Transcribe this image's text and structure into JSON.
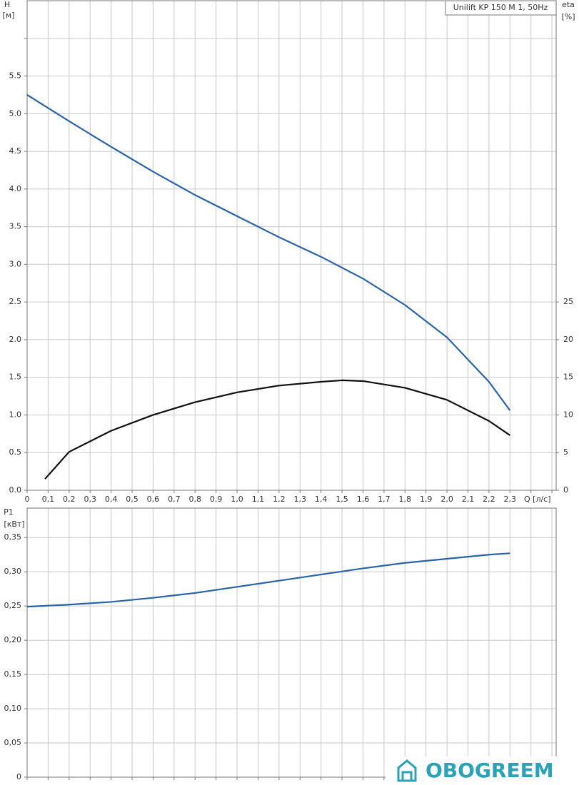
{
  "chart_data": [
    {
      "type": "line",
      "title": "Unilift KP 150 M 1, 50Hz",
      "ylabel": "H",
      "yunit": "[м]",
      "y2label": "eta",
      "y2unit": "[%]",
      "xlabel": "Q [л/с]",
      "xlim": [
        0,
        2.52
      ],
      "ylim": [
        0,
        6.5
      ],
      "y2lim": [
        0,
        65
      ],
      "grid": true,
      "xticks": [
        0,
        {
          "value": 0.1,
          "label": "0,1"
        },
        {
          "value": 0.2,
          "label": "0,2"
        },
        {
          "value": 0.3,
          "label": "0,3"
        },
        {
          "value": 0.4,
          "label": "0,4"
        },
        {
          "value": 0.5,
          "label": "0,5"
        },
        {
          "value": 0.6,
          "label": "0,6"
        },
        {
          "value": 0.7,
          "label": "0,7"
        },
        {
          "value": 0.8,
          "label": "0,8"
        },
        {
          "value": 0.9,
          "label": "0,9"
        },
        {
          "value": 1.0,
          "label": "1,0"
        },
        {
          "value": 1.1,
          "label": "1,1"
        },
        {
          "value": 1.2,
          "label": "1,2"
        },
        {
          "value": 1.3,
          "label": "1,3"
        },
        {
          "value": 1.4,
          "label": "1,4"
        },
        {
          "value": 1.5,
          "label": "1,5"
        },
        {
          "value": 1.6,
          "label": "1,6"
        },
        {
          "value": 1.7,
          "label": "1,7"
        },
        {
          "value": 1.8,
          "label": "1,8"
        },
        {
          "value": 1.9,
          "label": "1,9"
        },
        {
          "value": 2.0,
          "label": "2,0"
        },
        {
          "value": 2.1,
          "label": "2,1"
        },
        {
          "value": 2.2,
          "label": "2,2"
        },
        {
          "value": 2.3,
          "label": "2,3"
        },
        {
          "value": 2.4,
          "label": null
        },
        {
          "value": 2.5,
          "label": null
        }
      ],
      "yticks": [
        {
          "value": 0,
          "label": "0.0"
        },
        0.5,
        {
          "value": 1,
          "label": "1.0"
        },
        1.5,
        {
          "value": 2,
          "label": "2.0"
        },
        2.5,
        {
          "value": 3,
          "label": "3.0"
        },
        3.5,
        {
          "value": 4,
          "label": "4.0"
        },
        4.5,
        {
          "value": 5,
          "label": "5.0"
        },
        5.5,
        {
          "value": 6,
          "label": null
        }
      ],
      "y2ticks": [
        0,
        5,
        10,
        15,
        20,
        25
      ],
      "series": [
        {
          "color": "#2a63a8",
          "x": [
            0,
            0.2,
            0.4,
            0.6,
            0.8,
            1.0,
            1.2,
            1.4,
            1.6,
            1.8,
            2.0,
            2.2,
            2.3
          ],
          "values": [
            5.25,
            4.9,
            4.56,
            4.23,
            3.92,
            3.64,
            3.36,
            3.1,
            2.81,
            2.46,
            2.03,
            1.44,
            1.06
          ]
        },
        {
          "color": "#111111",
          "axis": "y2",
          "x": [
            0.085,
            0.2,
            0.4,
            0.6,
            0.8,
            1.0,
            1.2,
            1.4,
            1.5,
            1.6,
            1.8,
            2.0,
            2.2,
            2.3
          ],
          "values": [
            1.5,
            5.1,
            7.9,
            10.0,
            11.7,
            13.0,
            13.9,
            14.4,
            14.6,
            14.5,
            13.6,
            12.0,
            9.2,
            7.3
          ]
        }
      ]
    },
    {
      "type": "line",
      "ylabel": "P1",
      "yunit": "[кВт]",
      "xlim": [
        0,
        2.52
      ],
      "ylim": [
        0,
        0.393
      ],
      "grid": true,
      "xtick_labels": false,
      "xticks": [
        0,
        0.1,
        0.2,
        0.3,
        0.4,
        0.5,
        0.6,
        0.7,
        0.8,
        0.9,
        1.0,
        1.1,
        1.2,
        1.3,
        1.4,
        1.5,
        1.6,
        1.7,
        1.8,
        1.9,
        2.0,
        2.1,
        2.2,
        2.3,
        2.4,
        2.5
      ],
      "yticks": [
        0,
        {
          "value": 0.05,
          "label": "0,05"
        },
        {
          "value": 0.1,
          "label": "0,10"
        },
        {
          "value": 0.15,
          "label": "0,15"
        },
        {
          "value": 0.2,
          "label": "0,20"
        },
        {
          "value": 0.25,
          "label": "0,25"
        },
        {
          "value": 0.3,
          "label": "0,30"
        },
        {
          "value": 0.35,
          "label": "0,35"
        }
      ],
      "series": [
        {
          "color": "#2a63a8",
          "x": [
            0,
            0.2,
            0.4,
            0.6,
            0.8,
            1.0,
            1.2,
            1.4,
            1.6,
            1.8,
            2.0,
            2.2,
            2.3
          ],
          "values": [
            0.249,
            0.252,
            0.256,
            0.262,
            0.269,
            0.278,
            0.287,
            0.296,
            0.305,
            0.313,
            0.319,
            0.325,
            0.327
          ]
        }
      ]
    }
  ],
  "watermark": "OBOGREEM"
}
